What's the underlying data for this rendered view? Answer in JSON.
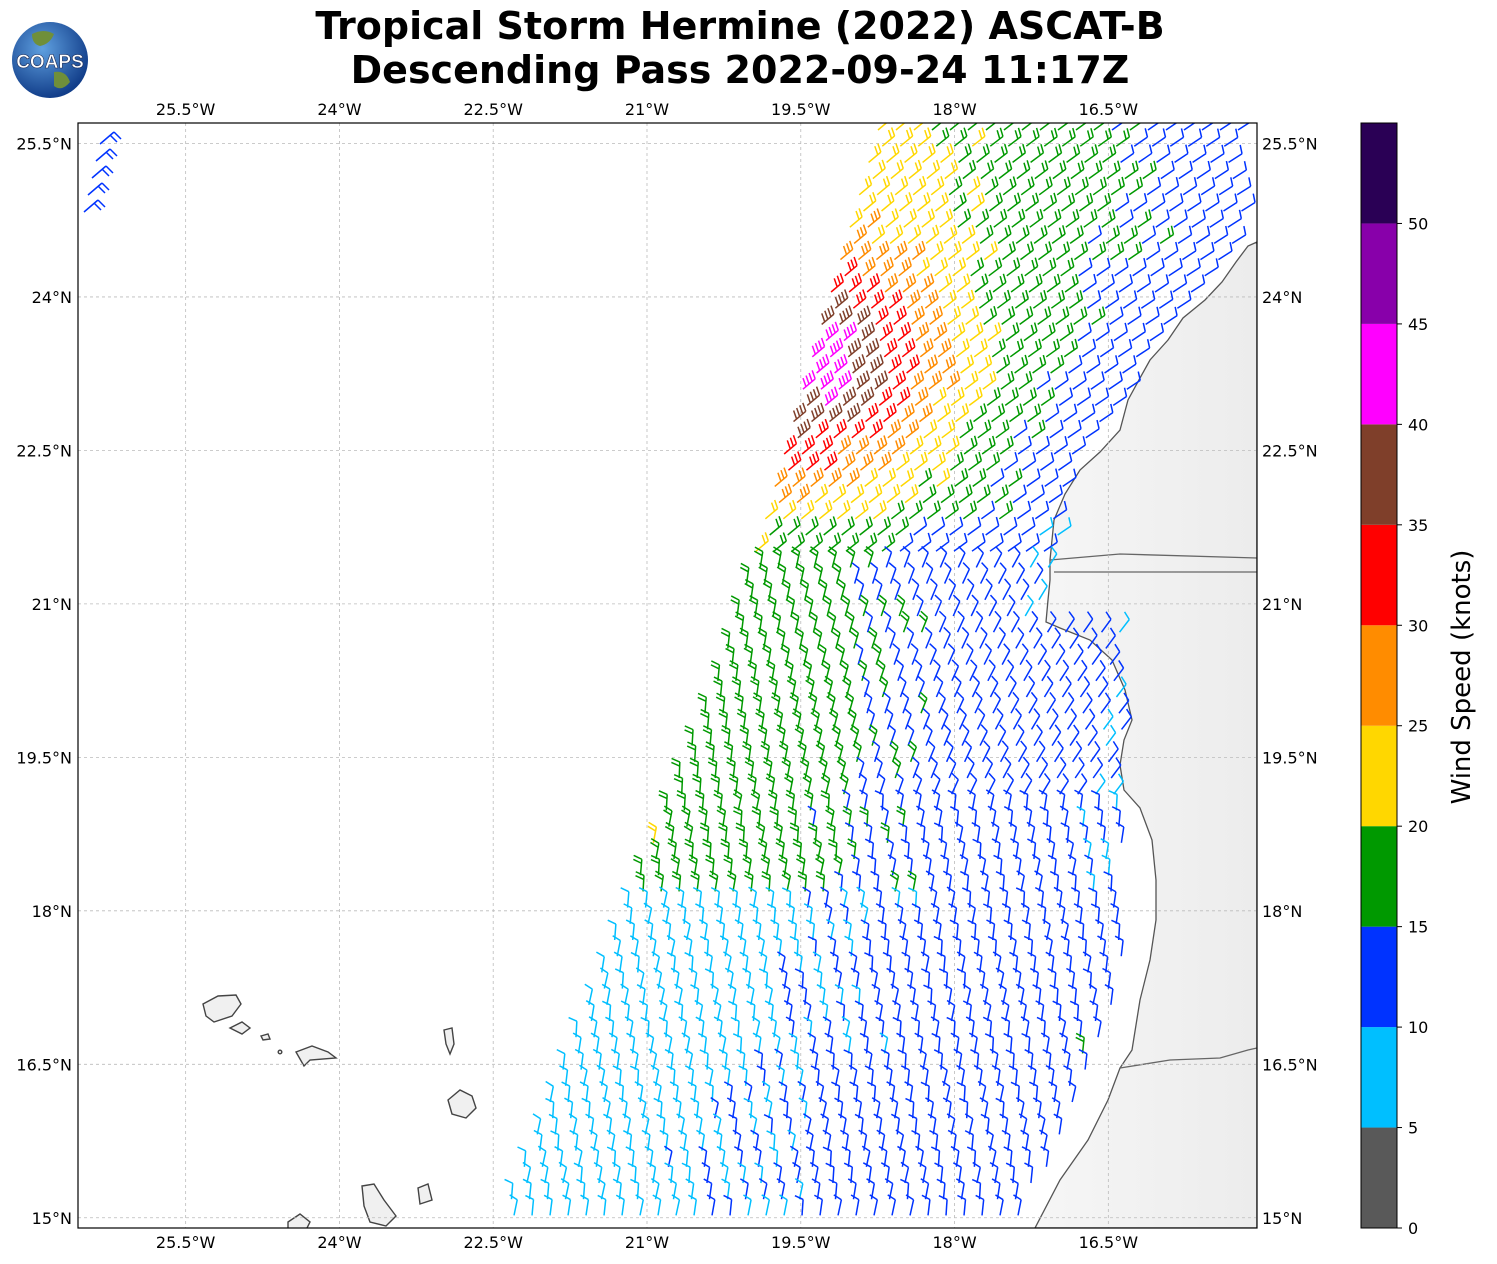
{
  "title": {
    "line1": "Tropical Storm Hermine (2022) ASCAT-B",
    "line2": "Descending Pass 2022-09-24 11:17Z"
  },
  "logo": {
    "text": "COAPS"
  },
  "map": {
    "lon_range": [
      -26.55,
      -15.05
    ],
    "lat_range": [
      14.9,
      25.7
    ],
    "lon_ticks": [
      {
        "value": -25.5,
        "label": "25.5°W"
      },
      {
        "value": -24.0,
        "label": "24°W"
      },
      {
        "value": -22.5,
        "label": "22.5°W"
      },
      {
        "value": -21.0,
        "label": "21°W"
      },
      {
        "value": -19.5,
        "label": "19.5°W"
      },
      {
        "value": -18.0,
        "label": "18°W"
      },
      {
        "value": -16.5,
        "label": "16.5°W"
      }
    ],
    "lat_ticks": [
      {
        "value": 25.5,
        "label": "25.5°N"
      },
      {
        "value": 24.0,
        "label": "24°N"
      },
      {
        "value": 22.5,
        "label": "22.5°N"
      },
      {
        "value": 21.0,
        "label": "21°N"
      },
      {
        "value": 19.5,
        "label": "19.5°N"
      },
      {
        "value": 18.0,
        "label": "18°N"
      },
      {
        "value": 16.5,
        "label": "16.5°N"
      },
      {
        "value": 15.0,
        "label": "15°N"
      }
    ],
    "grid": true
  },
  "colorbar": {
    "label": "Wind Speed (knots)",
    "range": [
      0,
      55
    ],
    "bins": [
      {
        "min": 0,
        "max": 5,
        "color": "#595959"
      },
      {
        "min": 5,
        "max": 10,
        "color": "#00bfff"
      },
      {
        "min": 10,
        "max": 15,
        "color": "#0033ff"
      },
      {
        "min": 15,
        "max": 20,
        "color": "#009900"
      },
      {
        "min": 20,
        "max": 25,
        "color": "#ffd700"
      },
      {
        "min": 25,
        "max": 30,
        "color": "#ff8c00"
      },
      {
        "min": 30,
        "max": 35,
        "color": "#ff0000"
      },
      {
        "min": 35,
        "max": 40,
        "color": "#7f3f2a"
      },
      {
        "min": 40,
        "max": 45,
        "color": "#ff00ff"
      },
      {
        "min": 45,
        "max": 50,
        "color": "#8800aa"
      },
      {
        "min": 50,
        "max": 55,
        "color": "#2a0055"
      }
    ],
    "ticks": [
      "0",
      "5",
      "10",
      "15",
      "20",
      "25",
      "30",
      "35",
      "40",
      "45",
      "50"
    ]
  }
}
